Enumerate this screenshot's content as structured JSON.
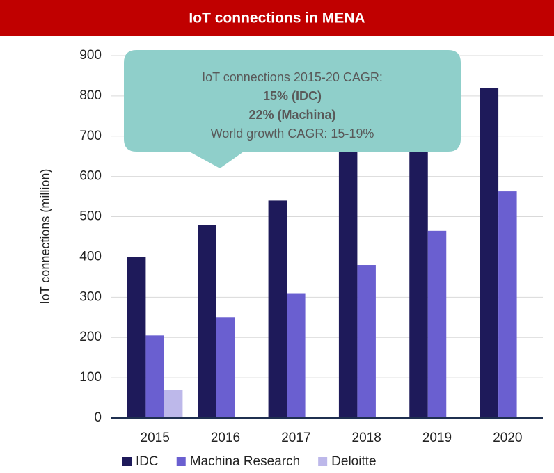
{
  "chart_data": {
    "type": "bar",
    "title": "IoT connections in MENA",
    "y_label": "IoT connections (million)",
    "categories": [
      "2015",
      "2016",
      "2017",
      "2018",
      "2019",
      "2020"
    ],
    "series": [
      {
        "name": "IDC",
        "color": "#1e1a5a",
        "values": [
          400,
          480,
          540,
          680,
          750,
          820
        ]
      },
      {
        "name": "Machina Research",
        "color": "#6a5fd0",
        "values": [
          205,
          250,
          310,
          380,
          465,
          563
        ]
      },
      {
        "name": "Deloitte",
        "color": "#bdb8ea",
        "values": [
          70,
          null,
          null,
          null,
          null,
          null
        ]
      }
    ],
    "ylim": [
      0,
      900
    ],
    "yticks": [
      0,
      100,
      200,
      300,
      400,
      500,
      600,
      700,
      800,
      900
    ],
    "grid": true,
    "annotation": {
      "lines": [
        "IoT connections 2015-20 CAGR:",
        "15% (IDC)",
        "22% (Machina)",
        "World growth CAGR: 15-19%"
      ]
    }
  }
}
